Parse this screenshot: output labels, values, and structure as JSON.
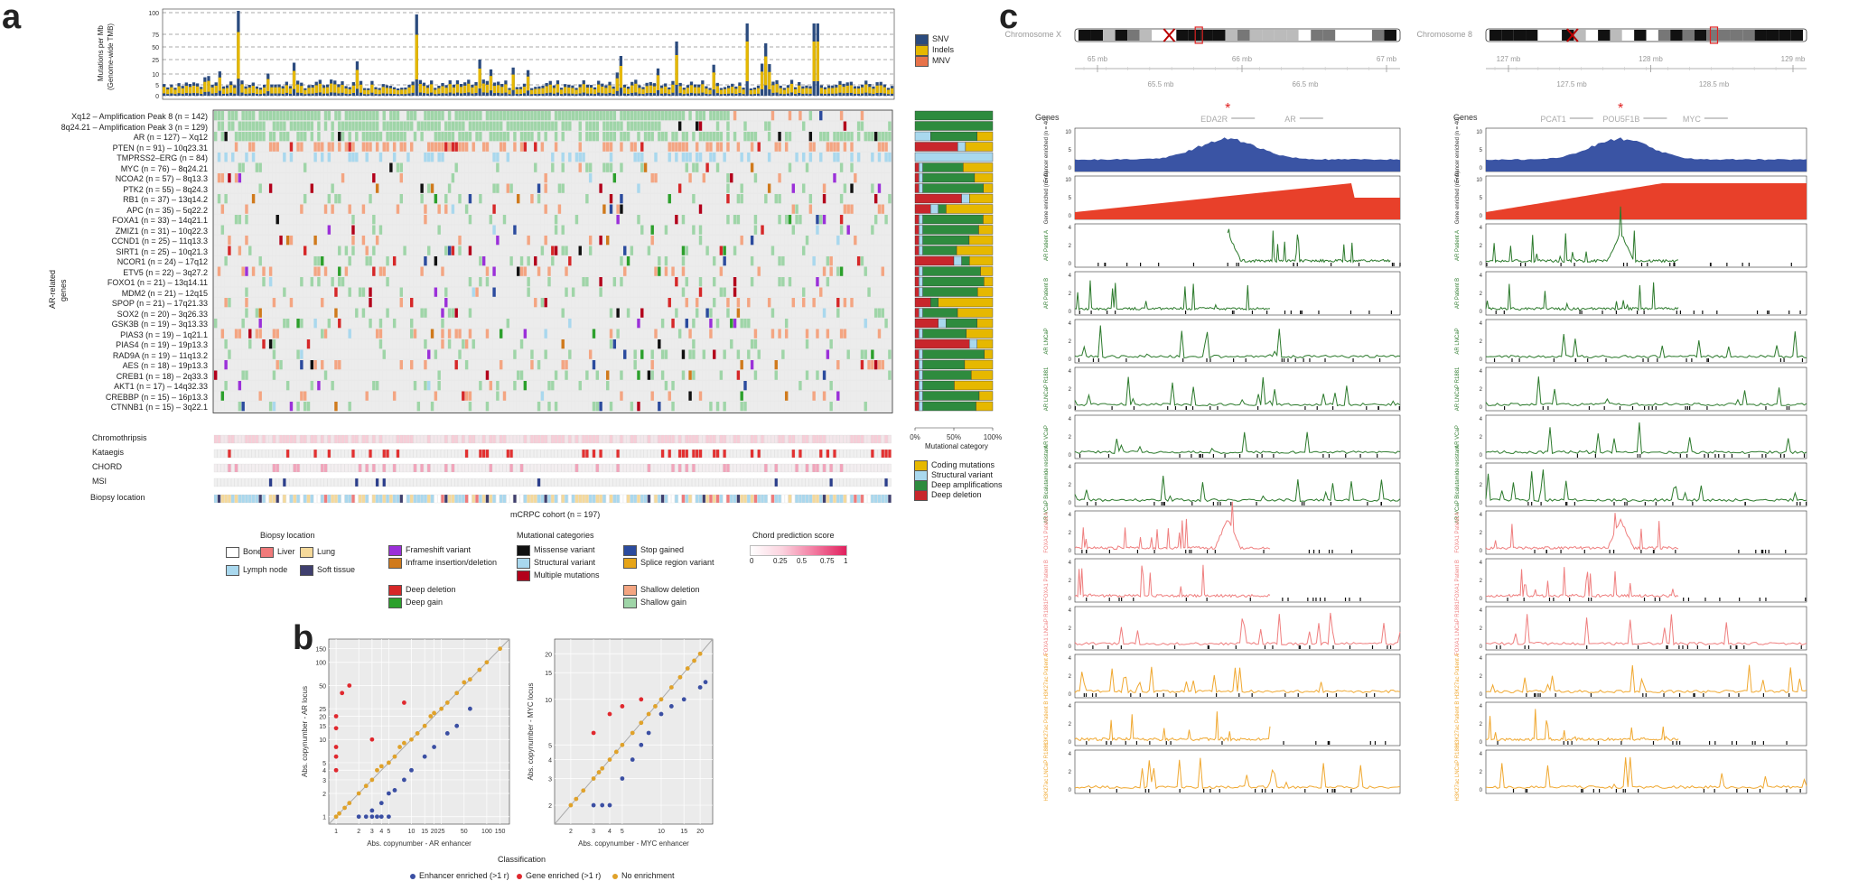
{
  "panels": {
    "a": "a",
    "b": "b",
    "c": "c"
  },
  "panel_a": {
    "tmb_ylabel_1": "Mutations per Mb",
    "tmb_ylabel_2": "(Genome-wide TMB)",
    "tmb_ticks": [
      "100",
      "75",
      "50",
      "25",
      "10",
      "5",
      "0"
    ],
    "tmb_legend": [
      {
        "label": "SNV",
        "color": "#2b4b7e"
      },
      {
        "label": "Indels",
        "color": "#e6b800"
      },
      {
        "label": "MNV",
        "color": "#e8734a"
      }
    ],
    "side_label_1": "AR-related",
    "side_label_2": "genes",
    "genes": [
      "Xq12 – Amplification Peak 8 (n = 142)",
      "8q24.21 – Amplification Peak 3 (n = 129)",
      "AR (n = 127) – Xq12",
      "PTEN (n = 91) – 10q23.31",
      "TMPRSS2–ERG (n = 84)",
      "MYC (n = 76) – 8q24.21",
      "NCOA2 (n = 57) – 8q13.3",
      "PTK2 (n = 55) – 8q24.3",
      "RB1 (n = 37) – 13q14.2",
      "APC (n = 35) – 5q22.2",
      "FOXA1 (n = 33) – 14q21.1",
      "ZMIZ1 (n = 31) – 10q22.3",
      "CCND1 (n = 25) – 11q13.3",
      "SIRT1 (n = 25) – 10q21.3",
      "NCOR1 (n = 24) – 17q12",
      "ETV5 (n = 22) – 3q27.2",
      "FOXO1 (n = 21) – 13q14.11",
      "MDM2 (n = 21) – 12q15",
      "SPOP (n = 21) – 17q21.33",
      "SOX2 (n = 20) – 3q26.33",
      "GSK3B (n = 19) – 3q13.33",
      "PIAS3 (n = 19) – 1q21.1",
      "PIAS4 (n = 19) – 19p13.3",
      "RAD9A (n = 19) – 11q13.2",
      "AES (n = 18) – 19p13.3",
      "CREB1 (n = 18) – 2q33.3",
      "AKT1 (n = 17) – 14q32.33",
      "CREBBP (n = 15) – 16p13.3",
      "CTNNB1 (n = 15) – 3q22.1"
    ],
    "annotations": [
      "Chromothripsis",
      "Kataegis",
      "CHORD",
      "MSI",
      "Biopsy location"
    ],
    "cohort_label": "mCRPC cohort (n = 197)",
    "mutcat_ticks": [
      "0%",
      "50%",
      "100%"
    ],
    "mutcat_title": "Mutational category",
    "mutcat_legend": [
      {
        "label": "Coding mutations",
        "color": "#e6b800"
      },
      {
        "label": "Structural variant",
        "color": "#a9d8ee"
      },
      {
        "label": "Deep amplifications",
        "color": "#2e8b3e"
      },
      {
        "label": "Deep deletion",
        "color": "#c8262c"
      }
    ],
    "legend": {
      "biopsy_title": "Biopsy location",
      "biopsy": [
        {
          "label": "Bone",
          "color": "#ffffff"
        },
        {
          "label": "Liver",
          "color": "#f07a7a"
        },
        {
          "label": "Lung",
          "color": "#f5d99a"
        },
        {
          "label": "Lymph node",
          "color": "#a9d8ee"
        },
        {
          "label": "Soft tissue",
          "color": "#3f3f6e"
        }
      ],
      "mutcat_title": "Mutational categories",
      "variants_col1": [
        {
          "label": "Frameshift variant",
          "color": "#9b30d9"
        },
        {
          "label": "Inframe insertion/deletion",
          "color": "#d07a1c"
        }
      ],
      "variants_col2": [
        {
          "label": "Missense variant",
          "color": "#111111"
        },
        {
          "label": "Structural variant",
          "color": "#a9d8ee"
        },
        {
          "label": "Multiple mutations",
          "color": "#b3001b"
        }
      ],
      "variants_col3": [
        {
          "label": "Stop gained",
          "color": "#2b4b9e"
        },
        {
          "label": "Splice region variant",
          "color": "#e6a417"
        }
      ],
      "cn_col1": [
        {
          "label": "Deep deletion",
          "color": "#d62728"
        },
        {
          "label": "Deep gain",
          "color": "#2ca02c"
        }
      ],
      "cn_col2": [
        {
          "label": "Shallow deletion",
          "color": "#f4a582"
        },
        {
          "label": "Shallow gain",
          "color": "#9fd5a8"
        }
      ],
      "chord_title": "Chord prediction score",
      "chord_ticks": [
        "0",
        "0.25",
        "0.5",
        "0.75",
        "1"
      ]
    }
  },
  "panel_b": {
    "left": {
      "ylabel": "Abs. copynumber - AR locus",
      "xlabel": "Abs. copynumber - AR enhancer",
      "ticks": [
        "1",
        "2",
        "3",
        "4",
        "5",
        "10",
        "15",
        "20",
        "25",
        "50",
        "100",
        "150"
      ]
    },
    "right": {
      "ylabel": "Abs. copynumber - MYC locus",
      "xlabel": "Abs. copynumber - MYC enhancer",
      "ticks": [
        "2",
        "3",
        "4",
        "5",
        "10",
        "15",
        "20"
      ]
    },
    "classification": "Classification",
    "classes": [
      {
        "label": "Enhancer enriched (>1 r)",
        "color": "#3b4fa3"
      },
      {
        "label": "Gene enriched (>1 r)",
        "color": "#e0282e"
      },
      {
        "label": "No enrichment",
        "color": "#e0a22a"
      }
    ]
  },
  "chart_data": [
    {
      "type": "scatter",
      "title": "",
      "xlabel": "Abs. copynumber - AR enhancer",
      "ylabel": "Abs. copynumber - AR locus",
      "scale": "log",
      "xlim": [
        0.8,
        200
      ],
      "ylim": [
        0.8,
        200
      ],
      "series": [
        {
          "name": "Enhancer enriched (>1 r)",
          "points": [
            [
              2,
              1
            ],
            [
              2.5,
              1
            ],
            [
              3,
              1
            ],
            [
              3.5,
              1
            ],
            [
              4,
              1
            ],
            [
              5,
              1
            ],
            [
              3,
              1.2
            ],
            [
              4,
              1.5
            ],
            [
              5,
              2
            ],
            [
              6,
              2.2
            ],
            [
              8,
              3
            ],
            [
              10,
              4
            ],
            [
              15,
              6
            ],
            [
              20,
              8
            ],
            [
              30,
              12
            ],
            [
              40,
              15
            ],
            [
              60,
              25
            ]
          ]
        },
        {
          "name": "Gene enriched (>1 r)",
          "points": [
            [
              1,
              4
            ],
            [
              1,
              6
            ],
            [
              1,
              8
            ],
            [
              1,
              14
            ],
            [
              1,
              20
            ],
            [
              1.2,
              40
            ],
            [
              1.5,
              50
            ],
            [
              3,
              10
            ],
            [
              8,
              30
            ]
          ]
        },
        {
          "name": "No enrichment",
          "points": [
            [
              1,
              1
            ],
            [
              1.1,
              1.1
            ],
            [
              1.3,
              1.3
            ],
            [
              1.5,
              1.5
            ],
            [
              2,
              2
            ],
            [
              2.5,
              2.5
            ],
            [
              3,
              3
            ],
            [
              3.5,
              4
            ],
            [
              4,
              4.5
            ],
            [
              5,
              5
            ],
            [
              6,
              6
            ],
            [
              7,
              8
            ],
            [
              8,
              9
            ],
            [
              10,
              10
            ],
            [
              12,
              12
            ],
            [
              15,
              15
            ],
            [
              18,
              20
            ],
            [
              20,
              22
            ],
            [
              25,
              25
            ],
            [
              30,
              30
            ],
            [
              40,
              40
            ],
            [
              50,
              55
            ],
            [
              60,
              60
            ],
            [
              80,
              80
            ],
            [
              100,
              100
            ],
            [
              150,
              150
            ]
          ]
        }
      ]
    },
    {
      "type": "scatter",
      "title": "",
      "xlabel": "Abs. copynumber - MYC enhancer",
      "ylabel": "Abs. copynumber - MYC locus",
      "scale": "log",
      "xlim": [
        1.5,
        25
      ],
      "ylim": [
        1.5,
        25
      ],
      "series": [
        {
          "name": "Enhancer enriched (>1 r)",
          "points": [
            [
              3,
              2
            ],
            [
              3.5,
              2
            ],
            [
              4,
              2
            ],
            [
              5,
              3
            ],
            [
              6,
              4
            ],
            [
              7,
              5
            ],
            [
              8,
              6
            ],
            [
              10,
              8
            ],
            [
              12,
              9
            ],
            [
              15,
              10
            ],
            [
              20,
              12
            ],
            [
              22,
              13
            ]
          ]
        },
        {
          "name": "Gene enriched (>1 r)",
          "points": [
            [
              3,
              6
            ],
            [
              4,
              8
            ],
            [
              5,
              9
            ],
            [
              7,
              10
            ]
          ]
        },
        {
          "name": "No enrichment",
          "points": [
            [
              2,
              2
            ],
            [
              2.2,
              2.2
            ],
            [
              2.5,
              2.5
            ],
            [
              3,
              3
            ],
            [
              3.3,
              3.3
            ],
            [
              3.5,
              3.5
            ],
            [
              4,
              4
            ],
            [
              4.5,
              4.5
            ],
            [
              5,
              5
            ],
            [
              6,
              6
            ],
            [
              7,
              7
            ],
            [
              8,
              8
            ],
            [
              9,
              9
            ],
            [
              10,
              10
            ],
            [
              12,
              12
            ],
            [
              14,
              14
            ],
            [
              16,
              16
            ],
            [
              18,
              18
            ],
            [
              20,
              20
            ]
          ]
        }
      ]
    }
  ],
  "panel_c": {
    "left": {
      "chrom": "Chromosome X",
      "scale": [
        "65 mb",
        "66 mb",
        "67 mb"
      ],
      "scale2": [
        "65.5 mb",
        "66.5 mb"
      ],
      "genes_title": "Genes",
      "genes": [
        "EDA2R",
        "AR"
      ]
    },
    "right": {
      "chrom": "Chromosome 8",
      "scale": [
        "127 mb",
        "128 mb",
        "129 mb"
      ],
      "scale2": [
        "127.5 mb",
        "128.5 mb"
      ],
      "genes_title": "Genes",
      "genes": [
        "PCAT1",
        "POU5F1B",
        "MYC"
      ]
    },
    "tracks": [
      {
        "label": "Enhancer enriched (n = 40)",
        "color": "#3a54a4"
      },
      {
        "label": "Gene enriched (n = 9)",
        "color": "#e8402a"
      },
      {
        "label": "AR Patient A",
        "color": "#2c7a2c"
      },
      {
        "label": "AR Patient B",
        "color": "#2c7a2c"
      },
      {
        "label": "AR LNCaP",
        "color": "#2c7a2c"
      },
      {
        "label": "AR LNCaP R1881",
        "color": "#2c7a2c"
      },
      {
        "label": "AR VCaP",
        "color": "#2c7a2c"
      },
      {
        "label": "AR VCaP Bicalutamide resistant",
        "color": "#2c7a2c"
      },
      {
        "label": "FOXA1 Patient A",
        "color": "#ef7f7f"
      },
      {
        "label": "FOXA1 Patient B",
        "color": "#ef7f7f"
      },
      {
        "label": "FOXA1 LNCaP R1881",
        "color": "#ef7f7f"
      },
      {
        "label": "H3K27ac Patient A",
        "color": "#f0a830"
      },
      {
        "label": "H3K27ac Patient B",
        "color": "#f0a830"
      },
      {
        "label": "H3K27ac LNCaP R1881",
        "color": "#f0a830"
      }
    ]
  }
}
